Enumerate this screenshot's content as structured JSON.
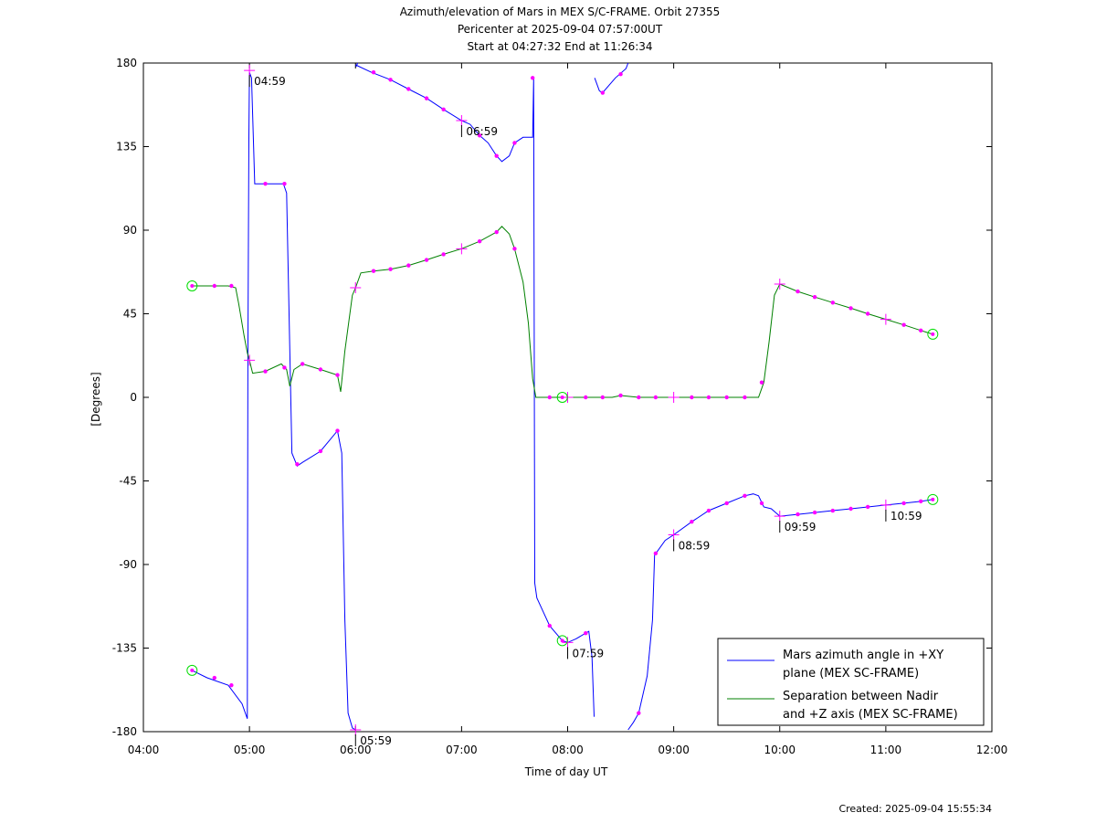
{
  "chart_data": {
    "type": "line",
    "title_lines": [
      "Azimuth/elevation of Mars in MEX S/C-FRAME.  Orbit 27355",
      "Pericenter at 2025-09-04 07:57:00UT",
      "Start at 04:27:32 End at 11:26:34"
    ],
    "xlabel": "Time of day UT",
    "ylabel": "[Degrees]",
    "footer": "Created: 2025-09-04 15:55:34",
    "xlim": [
      4.0,
      12.0
    ],
    "ylim": [
      -180,
      180
    ],
    "x_ticks": [
      {
        "v": 4,
        "label": "04:00"
      },
      {
        "v": 5,
        "label": "05:00"
      },
      {
        "v": 6,
        "label": "06:00"
      },
      {
        "v": 7,
        "label": "07:00"
      },
      {
        "v": 8,
        "label": "08:00"
      },
      {
        "v": 9,
        "label": "09:00"
      },
      {
        "v": 10,
        "label": "10:00"
      },
      {
        "v": 11,
        "label": "11:00"
      },
      {
        "v": 12,
        "label": "12:00"
      }
    ],
    "y_ticks": [
      {
        "v": 180,
        "label": "180"
      },
      {
        "v": 135,
        "label": "135"
      },
      {
        "v": 90,
        "label": "90"
      },
      {
        "v": 45,
        "label": "45"
      },
      {
        "v": 0,
        "label": "0"
      },
      {
        "v": -45,
        "label": "-45"
      },
      {
        "v": -90,
        "label": "-90"
      },
      {
        "v": -135,
        "label": "-135"
      },
      {
        "v": -180,
        "label": "-180"
      }
    ],
    "legend": {
      "placement": "bottom-right",
      "entries": [
        {
          "lines": [
            "Mars azimuth angle in +XY",
            "plane (MEX SC-FRAME)"
          ],
          "color": "#0000ff"
        },
        {
          "lines": [
            "Separation between Nadir",
            "and +Z axis (MEX SC-FRAME)"
          ],
          "color": "#008000"
        }
      ]
    },
    "marker_color": "#ff00ff",
    "circle_color": "#00dd00",
    "series": [
      {
        "name": "Mars azimuth angle in +XY plane (MEX SC-FRAME)",
        "color": "#0000ff",
        "segments": [
          [
            [
              4.459,
              -147
            ],
            [
              4.6,
              -151
            ],
            [
              4.8,
              -155
            ],
            [
              4.93,
              -165
            ],
            [
              4.98,
              -173
            ],
            [
              4.985,
              20
            ],
            [
              4.995,
              140
            ],
            [
              5.0,
              175
            ],
            [
              5.02,
              172
            ],
            [
              5.05,
              115
            ],
            [
              5.15,
              115
            ],
            [
              5.32,
              115
            ],
            [
              5.35,
              110
            ],
            [
              5.4,
              -30
            ],
            [
              5.45,
              -37
            ],
            [
              5.5,
              -35
            ],
            [
              5.67,
              -29
            ],
            [
              5.83,
              -18
            ],
            [
              5.87,
              -30
            ],
            [
              5.9,
              -120
            ],
            [
              5.93,
              -170
            ],
            [
              5.97,
              -178
            ],
            [
              6.0,
              -179
            ]
          ],
          [
            [
              6.005,
              178
            ],
            [
              6.02,
              180
            ]
          ],
          [
            [
              6.0,
              179
            ],
            [
              6.15,
              175
            ],
            [
              6.33,
              171
            ],
            [
              6.5,
              166
            ],
            [
              6.67,
              161
            ],
            [
              6.83,
              155
            ],
            [
              7.0,
              149
            ],
            [
              7.08,
              147
            ],
            [
              7.17,
              141
            ],
            [
              7.25,
              137
            ],
            [
              7.33,
              130
            ],
            [
              7.38,
              127
            ],
            [
              7.45,
              130
            ],
            [
              7.5,
              137
            ],
            [
              7.58,
              140
            ],
            [
              7.63,
              140
            ],
            [
              7.67,
              140
            ],
            [
              7.68,
              172
            ],
            [
              7.69,
              -100
            ],
            [
              7.71,
              -108
            ],
            [
              7.75,
              -113
            ],
            [
              7.83,
              -123
            ],
            [
              7.92,
              -129
            ],
            [
              7.95,
              -131
            ],
            [
              8.0,
              -132
            ],
            [
              8.08,
              -130
            ],
            [
              8.17,
              -127
            ],
            [
              8.2,
              -126
            ],
            [
              8.23,
              -140
            ],
            [
              8.25,
              -172
            ]
          ],
          [
            [
              8.255,
              172
            ],
            [
              8.3,
              165
            ],
            [
              8.33,
              164
            ],
            [
              8.45,
              172
            ],
            [
              8.55,
              177
            ],
            [
              8.57,
              180
            ]
          ],
          [
            [
              8.57,
              -179
            ],
            [
              8.62,
              -175
            ],
            [
              8.67,
              -170
            ],
            [
              8.75,
              -150
            ],
            [
              8.8,
              -120
            ],
            [
              8.82,
              -85
            ],
            [
              8.92,
              -77
            ],
            [
              9.0,
              -74
            ],
            [
              9.17,
              -67
            ],
            [
              9.33,
              -61
            ],
            [
              9.5,
              -57
            ],
            [
              9.67,
              -53
            ],
            [
              9.75,
              -52
            ],
            [
              9.8,
              -53
            ],
            [
              9.85,
              -59
            ],
            [
              9.92,
              -60
            ],
            [
              10.0,
              -64
            ],
            [
              10.17,
              -63
            ],
            [
              10.33,
              -62
            ],
            [
              10.5,
              -61
            ],
            [
              10.67,
              -60
            ],
            [
              10.83,
              -59
            ],
            [
              11.0,
              -58
            ],
            [
              11.17,
              -57
            ],
            [
              11.33,
              -56
            ],
            [
              11.443,
              -55
            ]
          ]
        ]
      },
      {
        "name": "Separation between Nadir and +Z axis (MEX SC-FRAME)",
        "color": "#008000",
        "segments": [
          [
            [
              4.459,
              60
            ],
            [
              4.6,
              60
            ],
            [
              4.8,
              60
            ],
            [
              4.87,
              59
            ],
            [
              4.9,
              50
            ],
            [
              4.95,
              33
            ],
            [
              4.98,
              24
            ],
            [
              5.0,
              20
            ],
            [
              5.03,
              13
            ],
            [
              5.15,
              14
            ],
            [
              5.3,
              18
            ],
            [
              5.35,
              15
            ],
            [
              5.38,
              6
            ],
            [
              5.42,
              15
            ],
            [
              5.5,
              18
            ],
            [
              5.67,
              15
            ],
            [
              5.83,
              12
            ],
            [
              5.86,
              3
            ],
            [
              5.9,
              25
            ],
            [
              5.97,
              55
            ],
            [
              6.0,
              59
            ],
            [
              6.05,
              67
            ],
            [
              6.17,
              68
            ],
            [
              6.33,
              69
            ],
            [
              6.5,
              71
            ],
            [
              6.67,
              74
            ],
            [
              6.83,
              77
            ],
            [
              7.0,
              80
            ],
            [
              7.17,
              84
            ],
            [
              7.33,
              89
            ],
            [
              7.38,
              92
            ],
            [
              7.45,
              88
            ],
            [
              7.5,
              80
            ],
            [
              7.58,
              62
            ],
            [
              7.63,
              40
            ],
            [
              7.67,
              10
            ],
            [
              7.7,
              0
            ],
            [
              7.83,
              0
            ],
            [
              7.95,
              0
            ],
            [
              8.08,
              0
            ],
            [
              8.25,
              0
            ],
            [
              8.42,
              0
            ],
            [
              8.5,
              1
            ],
            [
              8.67,
              0
            ],
            [
              8.83,
              0
            ],
            [
              9.0,
              0
            ],
            [
              9.17,
              0
            ],
            [
              9.33,
              0
            ],
            [
              9.5,
              0
            ],
            [
              9.67,
              0
            ],
            [
              9.8,
              0
            ],
            [
              9.85,
              8
            ],
            [
              9.9,
              30
            ],
            [
              9.95,
              55
            ],
            [
              10.0,
              61
            ],
            [
              10.17,
              57
            ],
            [
              10.33,
              54
            ],
            [
              10.5,
              51
            ],
            [
              10.67,
              48
            ],
            [
              10.83,
              45
            ],
            [
              11.0,
              42
            ],
            [
              11.17,
              39
            ],
            [
              11.33,
              36
            ],
            [
              11.443,
              34
            ]
          ]
        ]
      }
    ],
    "markers": {
      "dots": [
        [
          4.67,
          -151
        ],
        [
          4.83,
          -155
        ],
        [
          5.15,
          115
        ],
        [
          5.33,
          115
        ],
        [
          5.45,
          -36
        ],
        [
          5.67,
          -29
        ],
        [
          5.83,
          -18
        ],
        [
          6.17,
          175
        ],
        [
          6.33,
          171
        ],
        [
          6.5,
          166
        ],
        [
          6.67,
          161
        ],
        [
          6.83,
          155
        ],
        [
          7.17,
          141
        ],
        [
          7.33,
          130
        ],
        [
          7.5,
          137
        ],
        [
          7.67,
          172
        ],
        [
          7.83,
          -123
        ],
        [
          8.17,
          -127
        ],
        [
          8.33,
          164
        ],
        [
          8.5,
          174
        ],
        [
          8.67,
          -170
        ],
        [
          8.83,
          -84
        ],
        [
          9.17,
          -67
        ],
        [
          9.33,
          -61
        ],
        [
          9.5,
          -57
        ],
        [
          9.67,
          -53
        ],
        [
          9.83,
          -57
        ],
        [
          10.17,
          -63
        ],
        [
          10.33,
          -62
        ],
        [
          10.5,
          -61
        ],
        [
          10.67,
          -60
        ],
        [
          10.83,
          -59
        ],
        [
          11.17,
          -57
        ],
        [
          11.33,
          -56
        ],
        [
          4.67,
          60
        ],
        [
          4.83,
          60
        ],
        [
          5.15,
          14
        ],
        [
          5.33,
          16
        ],
        [
          5.5,
          18
        ],
        [
          5.67,
          15
        ],
        [
          5.83,
          12
        ],
        [
          6.17,
          68
        ],
        [
          6.33,
          69
        ],
        [
          6.5,
          71
        ],
        [
          6.67,
          74
        ],
        [
          6.83,
          77
        ],
        [
          7.17,
          84
        ],
        [
          7.33,
          89
        ],
        [
          7.5,
          80
        ],
        [
          7.83,
          0
        ],
        [
          8.17,
          0
        ],
        [
          8.33,
          0
        ],
        [
          8.5,
          1
        ],
        [
          8.67,
          0
        ],
        [
          8.83,
          0
        ],
        [
          9.17,
          0
        ],
        [
          9.33,
          0
        ],
        [
          9.5,
          0
        ],
        [
          9.67,
          0
        ],
        [
          9.83,
          8
        ],
        [
          10.17,
          57
        ],
        [
          10.33,
          54
        ],
        [
          10.5,
          51
        ],
        [
          10.67,
          48
        ],
        [
          10.83,
          45
        ],
        [
          11.17,
          39
        ],
        [
          11.33,
          36
        ]
      ],
      "crosses": [
        [
          5.0,
          176
        ],
        [
          5.0,
          20
        ],
        [
          6.0,
          -179
        ],
        [
          6.0,
          59
        ],
        [
          7.0,
          149
        ],
        [
          7.0,
          80
        ],
        [
          8.0,
          -132
        ],
        [
          8.0,
          0
        ],
        [
          9.0,
          -74
        ],
        [
          9.0,
          0
        ],
        [
          10.0,
          -64
        ],
        [
          10.0,
          61
        ],
        [
          11.0,
          -58
        ],
        [
          11.0,
          42
        ]
      ],
      "circles": [
        [
          4.459,
          -147
        ],
        [
          4.459,
          60
        ],
        [
          7.95,
          -131
        ],
        [
          7.95,
          0
        ],
        [
          11.443,
          -55
        ],
        [
          11.443,
          34
        ]
      ]
    },
    "annotations": [
      {
        "x": 4.983,
        "y": 176,
        "label": "04:59"
      },
      {
        "x": 5.983,
        "y": -179,
        "label": "05:59"
      },
      {
        "x": 6.983,
        "y": 149,
        "label": "06:59"
      },
      {
        "x": 7.983,
        "y": -132,
        "label": "07:59"
      },
      {
        "x": 8.983,
        "y": -74,
        "label": "08:59"
      },
      {
        "x": 9.983,
        "y": -64,
        "label": "09:59"
      },
      {
        "x": 10.983,
        "y": -58,
        "label": "10:59"
      }
    ]
  }
}
